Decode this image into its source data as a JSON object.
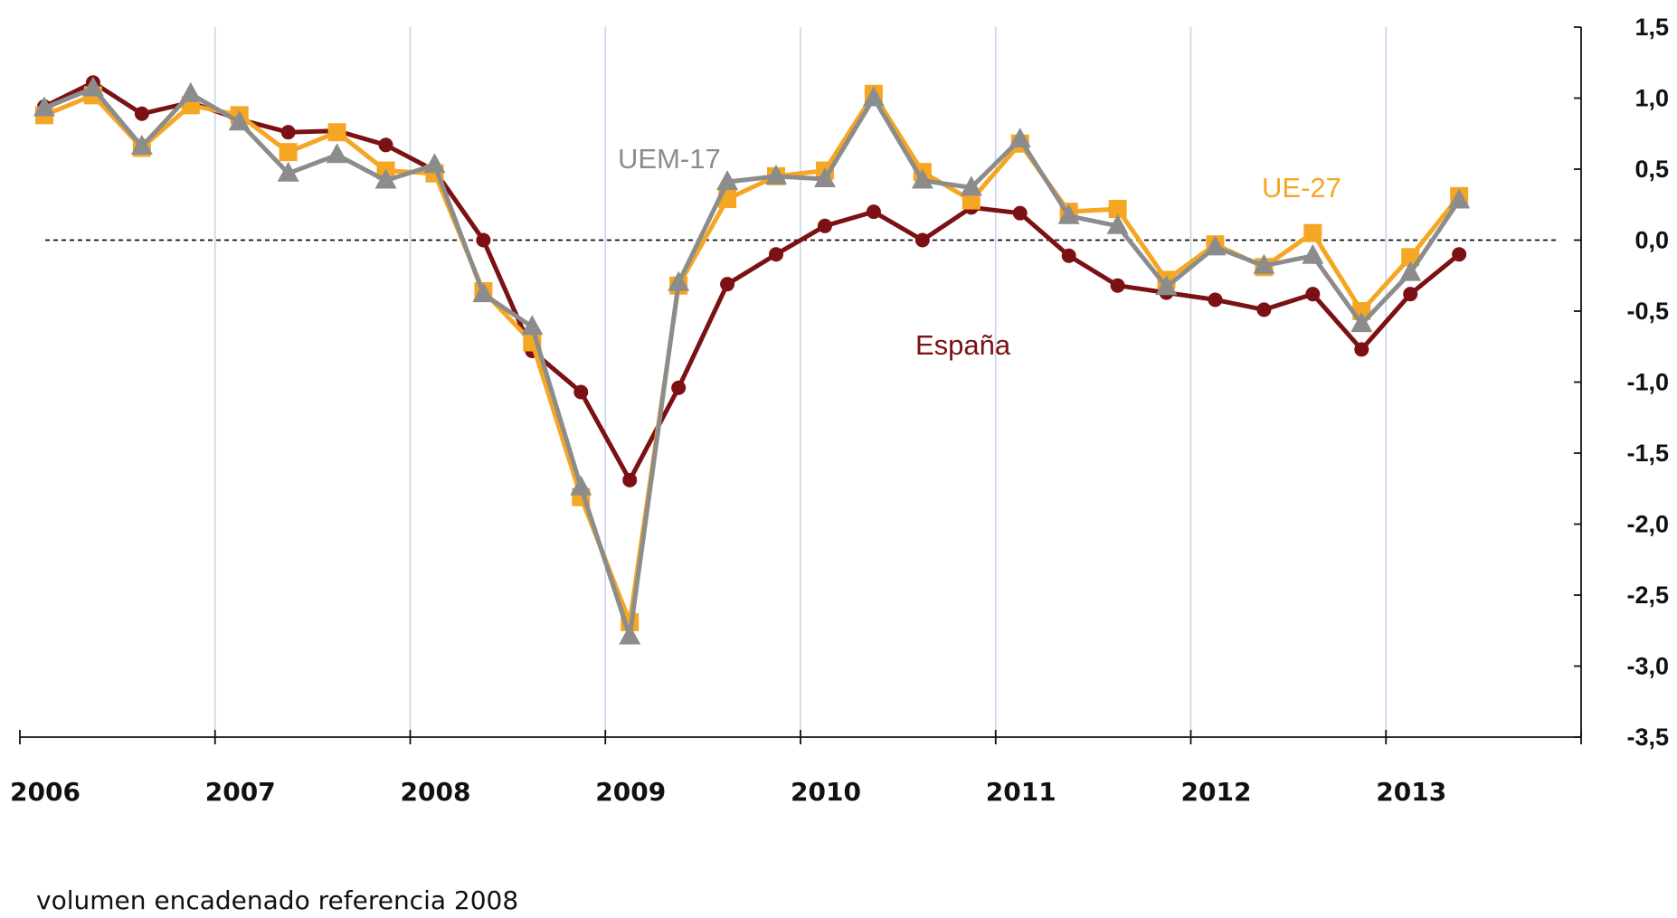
{
  "chart_data": {
    "type": "line",
    "title": "",
    "xlabel": "",
    "ylabel": "",
    "x_tick_labels": [
      "2006",
      "2007",
      "2008",
      "2009",
      "2010",
      "2011",
      "2012",
      "2013"
    ],
    "y_tick_labels": [
      "1,5",
      "1,0",
      "0,5",
      "0,0",
      "-0,5",
      "-1,0",
      "-1,5",
      "-2,0",
      "-2,5",
      "-3,0",
      "-3,5"
    ],
    "ylim": [
      -3.5,
      1.5
    ],
    "x_range_quarters": [
      0,
      32
    ],
    "zero_reference_line": "dashed",
    "vertical_gridlines": "at each year",
    "note": "volumen encadenado referencia 2008",
    "quarters": [
      "2006-T1",
      "2006-T2",
      "2006-T3",
      "2006-T4",
      "2007-T1",
      "2007-T2",
      "2007-T3",
      "2007-T4",
      "2008-T1",
      "2008-T2",
      "2008-T3",
      "2008-T4",
      "2009-T1",
      "2009-T2",
      "2009-T3",
      "2009-T4",
      "2010-T1",
      "2010-T2",
      "2010-T3",
      "2010-T4",
      "2011-T1",
      "2011-T2",
      "2011-T3",
      "2011-T4",
      "2012-T1",
      "2012-T2",
      "2012-T3",
      "2012-T4",
      "2013-T1",
      "2013-T2"
    ],
    "series": [
      {
        "name": "España",
        "color": "#7b1113",
        "marker": "circle",
        "values": [
          0.94,
          1.11,
          0.89,
          0.97,
          0.85,
          0.76,
          0.77,
          0.67,
          0.49,
          0.0,
          -0.78,
          -1.07,
          -1.69,
          -1.04,
          -0.31,
          -0.1,
          0.1,
          0.2,
          0.0,
          0.23,
          0.19,
          -0.11,
          -0.32,
          -0.37,
          -0.42,
          -0.49,
          -0.38,
          -0.77,
          -0.38,
          -0.1
        ],
        "label": "España"
      },
      {
        "name": "UE-27",
        "color": "#f5a623",
        "marker": "square",
        "values": [
          0.88,
          1.02,
          0.65,
          0.95,
          0.88,
          0.62,
          0.76,
          0.49,
          0.47,
          -0.36,
          -0.72,
          -1.81,
          -2.69,
          -0.32,
          0.29,
          0.45,
          0.49,
          1.03,
          0.48,
          0.28,
          0.68,
          0.2,
          0.22,
          -0.28,
          -0.03,
          -0.19,
          0.05,
          -0.5,
          -0.12,
          0.31
        ],
        "label": "UE-27"
      },
      {
        "name": "UEM-17",
        "color": "#8c8c8c",
        "marker": "triangle",
        "values": [
          0.93,
          1.07,
          0.66,
          1.03,
          0.83,
          0.47,
          0.6,
          0.42,
          0.53,
          -0.38,
          -0.61,
          -1.74,
          -2.79,
          -0.3,
          0.41,
          0.45,
          0.43,
          1.0,
          0.42,
          0.37,
          0.71,
          0.17,
          0.1,
          -0.33,
          -0.05,
          -0.18,
          -0.11,
          -0.59,
          -0.23,
          0.28
        ],
        "label": "UEM-17"
      }
    ]
  }
}
